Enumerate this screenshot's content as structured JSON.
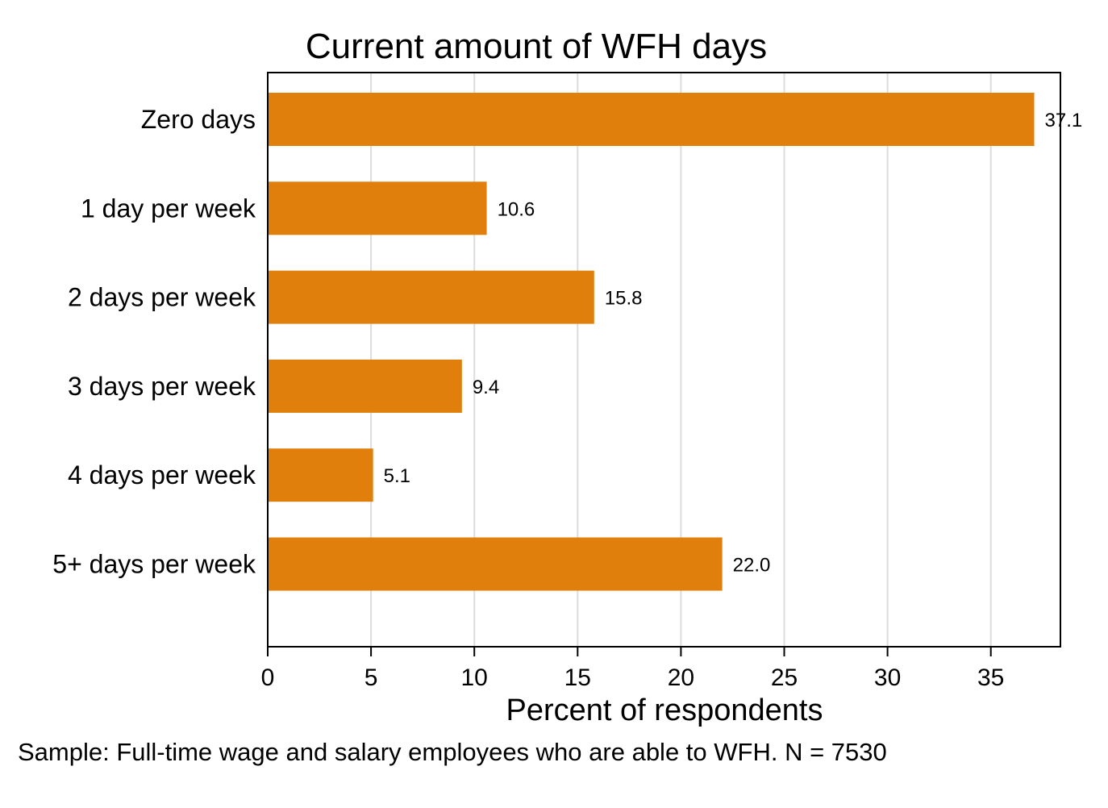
{
  "chart_data": {
    "type": "bar",
    "orientation": "horizontal",
    "title": "Current amount of WFH days",
    "xlabel": "Percent of respondents",
    "ylabel": "",
    "categories": [
      "Zero days",
      "1 day per week",
      "2 days per week",
      "3 days per week",
      "4 days per week",
      "5+ days per week"
    ],
    "values": [
      37.1,
      10.6,
      15.8,
      9.4,
      5.1,
      22.0
    ],
    "value_labels": [
      "37.1",
      "10.6",
      "15.8",
      "9.4",
      "5.1",
      "22.0"
    ],
    "xlim": [
      0,
      38.5
    ],
    "x_ticks": [
      0,
      5,
      10,
      15,
      20,
      25,
      30,
      35
    ],
    "x_tick_labels": [
      "0",
      "5",
      "10",
      "15",
      "20",
      "25",
      "30",
      "35"
    ],
    "grid": "vertical",
    "legend": "none",
    "note": "Sample: Full-time wage and salary employees who are able to WFH. N = 7530",
    "colors": {
      "bar": "#e17f0c",
      "grid": "#dcdcdc",
      "axis": "#000000"
    }
  }
}
